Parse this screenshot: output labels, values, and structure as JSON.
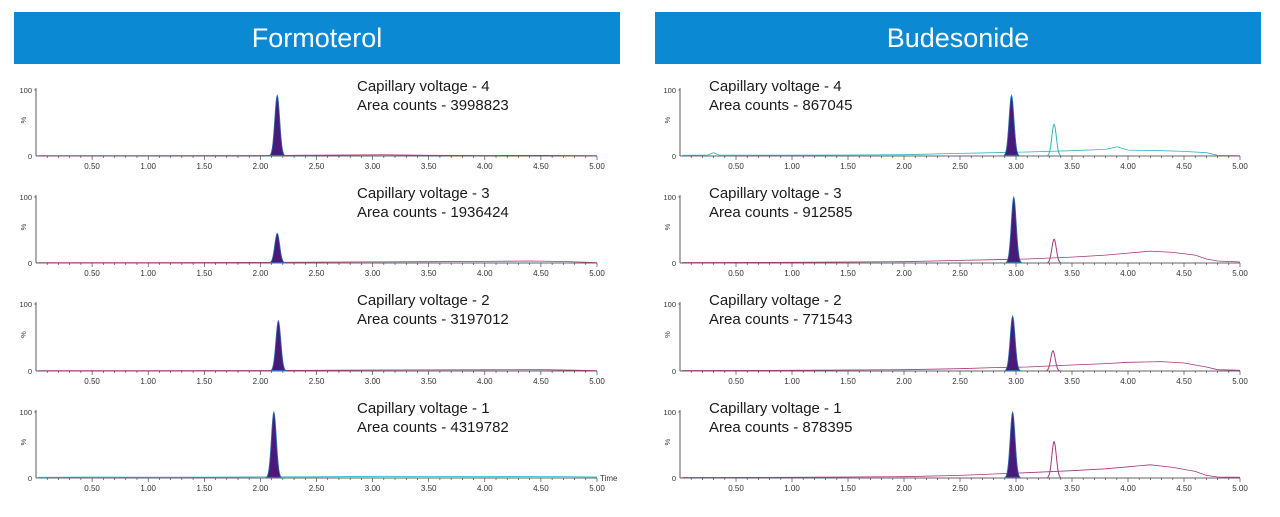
{
  "colors": {
    "header_bg": "#0b8ad3",
    "header_text": "#ffffff",
    "peak_fill": "#4a1a7a",
    "peak_edge": "#2a6fb0",
    "trace_cyan": "#2bb5c3",
    "trace_magenta": "#a8337f",
    "axis": "#333333"
  },
  "panels": [
    {
      "title": "Formoterol"
    },
    {
      "title": "Budesonide"
    }
  ],
  "chart_data": [
    {
      "type": "line",
      "compound": "Formoterol",
      "condition": "Capillary voltage - 4",
      "area": "Area counts - 3998823",
      "x_label": "",
      "xlim": [
        0,
        5.0
      ],
      "ylim": [
        0,
        100
      ],
      "y_ticks": [
        "100",
        "0"
      ],
      "y_unit": "%",
      "x_ticks": [
        "0.50",
        "1.00",
        "1.50",
        "2.00",
        "2.50",
        "3.00",
        "3.50",
        "4.00",
        "4.50",
        "5.00"
      ],
      "trace_color": "#a8337f",
      "peaks": [
        {
          "x": 2.15,
          "height": 92,
          "width": 0.022,
          "filled": true
        }
      ],
      "baseline": [
        [
          0.02,
          0.5
        ],
        [
          1.0,
          0.6
        ],
        [
          2.0,
          0.8
        ],
        [
          2.5,
          1.2
        ],
        [
          3.1,
          1.8
        ],
        [
          3.5,
          1.0
        ],
        [
          4.0,
          0.7
        ],
        [
          4.5,
          0.9
        ],
        [
          5.0,
          0.5
        ]
      ]
    },
    {
      "type": "line",
      "compound": "Formoterol",
      "condition": "Capillary voltage - 3",
      "area": "Area counts - 1936424",
      "x_label": "",
      "xlim": [
        0,
        5.0
      ],
      "ylim": [
        0,
        100
      ],
      "y_ticks": [
        "100",
        "0"
      ],
      "y_unit": "%",
      "x_ticks": [
        "0.50",
        "1.00",
        "1.50",
        "2.00",
        "2.50",
        "3.00",
        "3.50",
        "4.00",
        "4.50",
        "5.00"
      ],
      "trace_color": "#a8337f",
      "peaks": [
        {
          "x": 2.15,
          "height": 45,
          "width": 0.022,
          "filled": true
        }
      ],
      "baseline": [
        [
          0.02,
          0.6
        ],
        [
          1.0,
          0.6
        ],
        [
          2.0,
          0.9
        ],
        [
          2.5,
          1.3
        ],
        [
          3.0,
          1.6
        ],
        [
          3.5,
          2.0
        ],
        [
          4.0,
          2.4
        ],
        [
          4.4,
          3.0
        ],
        [
          4.7,
          2.2
        ],
        [
          5.0,
          0.6
        ]
      ]
    },
    {
      "type": "line",
      "compound": "Formoterol",
      "condition": "Capillary voltage - 2",
      "area": "Area counts - 3197012",
      "x_label": "",
      "xlim": [
        0,
        5.0
      ],
      "ylim": [
        0,
        100
      ],
      "y_ticks": [
        "100",
        "0"
      ],
      "y_unit": "%",
      "x_ticks": [
        "0.50",
        "1.00",
        "1.50",
        "2.00",
        "2.50",
        "3.00",
        "3.50",
        "4.00",
        "4.50",
        "5.00"
      ],
      "trace_color": "#a8337f",
      "peaks": [
        {
          "x": 2.16,
          "height": 75,
          "width": 0.022,
          "filled": true
        }
      ],
      "baseline": [
        [
          0.02,
          0.5
        ],
        [
          1.0,
          0.6
        ],
        [
          2.0,
          0.8
        ],
        [
          2.5,
          1.1
        ],
        [
          3.0,
          1.5
        ],
        [
          3.5,
          1.6
        ],
        [
          4.0,
          1.8
        ],
        [
          4.5,
          2.0
        ],
        [
          4.8,
          1.2
        ],
        [
          5.0,
          0.5
        ]
      ]
    },
    {
      "type": "line",
      "compound": "Formoterol",
      "condition": "Capillary voltage - 1",
      "area": "Area counts - 4319782",
      "x_label": "Time",
      "xlim": [
        0,
        5.0
      ],
      "ylim": [
        0,
        100
      ],
      "y_ticks": [
        "100",
        "0"
      ],
      "y_unit": "%",
      "x_ticks": [
        "0.50",
        "1.00",
        "1.50",
        "2.00",
        "2.50",
        "3.00",
        "3.50",
        "4.00",
        "4.50",
        "5.00"
      ],
      "trace_color": "#2bb5c3",
      "peaks": [
        {
          "x": 2.12,
          "height": 100,
          "width": 0.022,
          "filled": true
        }
      ],
      "baseline": [
        [
          0.02,
          1.0
        ],
        [
          0.5,
          1.5
        ],
        [
          1.0,
          1.2
        ],
        [
          1.5,
          1.4
        ],
        [
          2.0,
          1.6
        ],
        [
          2.5,
          1.8
        ],
        [
          3.1,
          2.6
        ],
        [
          3.5,
          2.2
        ],
        [
          4.0,
          2.0
        ],
        [
          4.5,
          2.4
        ],
        [
          5.0,
          1.5
        ]
      ]
    },
    {
      "type": "line",
      "compound": "Budesonide",
      "condition": "Capillary voltage - 4",
      "area": "Area counts - 867045",
      "x_label": "",
      "xlim": [
        0,
        5.0
      ],
      "ylim": [
        0,
        100
      ],
      "y_ticks": [
        "100",
        "0"
      ],
      "y_unit": "%",
      "x_ticks": [
        "0.50",
        "1.00",
        "1.50",
        "2.00",
        "2.50",
        "3.00",
        "3.50",
        "4.00",
        "4.50",
        "5.00"
      ],
      "trace_color": "#2bb5c3",
      "peaks": [
        {
          "x": 2.96,
          "height": 92,
          "width": 0.022,
          "filled": true
        },
        {
          "x": 3.34,
          "height": 48,
          "width": 0.02,
          "filled": false
        }
      ],
      "baseline": [
        [
          0.02,
          1.0
        ],
        [
          0.25,
          1.5
        ],
        [
          0.3,
          5.0
        ],
        [
          0.35,
          1.5
        ],
        [
          1.0,
          1.2
        ],
        [
          1.5,
          1.5
        ],
        [
          2.0,
          2.0
        ],
        [
          2.5,
          4.0
        ],
        [
          2.8,
          5.0
        ],
        [
          3.1,
          6.0
        ],
        [
          3.5,
          8.0
        ],
        [
          3.8,
          10.0
        ],
        [
          3.9,
          14.0
        ],
        [
          4.0,
          9.0
        ],
        [
          4.3,
          8.0
        ],
        [
          4.5,
          7.0
        ],
        [
          4.7,
          5.0
        ],
        [
          4.8,
          1.0
        ],
        [
          5.0,
          0.8
        ]
      ]
    },
    {
      "type": "line",
      "compound": "Budesonide",
      "condition": "Capillary voltage - 3",
      "area": "Area counts - 912585",
      "x_label": "",
      "xlim": [
        0,
        5.0
      ],
      "ylim": [
        0,
        100
      ],
      "y_ticks": [
        "100",
        "0"
      ],
      "y_unit": "%",
      "x_ticks": [
        "0.50",
        "1.00",
        "1.50",
        "2.00",
        "2.50",
        "3.00",
        "3.50",
        "4.00",
        "4.50",
        "5.00"
      ],
      "trace_color": "#a8337f",
      "peaks": [
        {
          "x": 2.98,
          "height": 100,
          "width": 0.022,
          "filled": true
        },
        {
          "x": 3.34,
          "height": 36,
          "width": 0.02,
          "filled": false
        }
      ],
      "baseline": [
        [
          0.02,
          0.8
        ],
        [
          1.0,
          1.0
        ],
        [
          2.0,
          2.0
        ],
        [
          2.5,
          4.0
        ],
        [
          2.8,
          5.0
        ],
        [
          3.1,
          6.0
        ],
        [
          3.5,
          9.0
        ],
        [
          3.8,
          12.0
        ],
        [
          4.0,
          15.0
        ],
        [
          4.2,
          18.0
        ],
        [
          4.4,
          16.0
        ],
        [
          4.6,
          12.0
        ],
        [
          4.7,
          6.0
        ],
        [
          4.8,
          3.0
        ],
        [
          5.0,
          1.5
        ]
      ]
    },
    {
      "type": "line",
      "compound": "Budesonide",
      "condition": "Capillary voltage - 2",
      "area": "Area counts - 771543",
      "x_label": "",
      "xlim": [
        0,
        5.0
      ],
      "ylim": [
        0,
        100
      ],
      "y_ticks": [
        "100",
        "0"
      ],
      "y_unit": "%",
      "x_ticks": [
        "0.50",
        "1.00",
        "1.50",
        "2.00",
        "2.50",
        "3.00",
        "3.50",
        "4.00",
        "4.50",
        "5.00"
      ],
      "trace_color": "#a8337f",
      "peaks": [
        {
          "x": 2.97,
          "height": 82,
          "width": 0.022,
          "filled": true
        },
        {
          "x": 3.33,
          "height": 30,
          "width": 0.02,
          "filled": false
        }
      ],
      "baseline": [
        [
          0.02,
          0.8
        ],
        [
          1.0,
          1.0
        ],
        [
          2.0,
          2.0
        ],
        [
          2.5,
          3.5
        ],
        [
          2.8,
          5.0
        ],
        [
          3.1,
          6.0
        ],
        [
          3.5,
          9.0
        ],
        [
          3.8,
          11.0
        ],
        [
          4.0,
          13.0
        ],
        [
          4.3,
          14.0
        ],
        [
          4.5,
          12.0
        ],
        [
          4.7,
          6.0
        ],
        [
          4.8,
          2.0
        ],
        [
          5.0,
          1.0
        ]
      ]
    },
    {
      "type": "line",
      "compound": "Budesonide",
      "condition": "Capillary voltage - 1",
      "area": "Area counts - 878395",
      "x_label": "",
      "xlim": [
        0,
        5.0
      ],
      "ylim": [
        0,
        100
      ],
      "y_ticks": [
        "100",
        "0"
      ],
      "y_unit": "%",
      "x_ticks": [
        "0.50",
        "1.00",
        "1.50",
        "2.00",
        "2.50",
        "3.00",
        "3.50",
        "4.00",
        "4.50",
        "5.00"
      ],
      "trace_color": "#a8337f",
      "peaks": [
        {
          "x": 2.97,
          "height": 100,
          "width": 0.022,
          "filled": true
        },
        {
          "x": 3.34,
          "height": 55,
          "width": 0.02,
          "filled": false
        }
      ],
      "baseline": [
        [
          0.02,
          0.8
        ],
        [
          1.0,
          1.0
        ],
        [
          2.0,
          2.0
        ],
        [
          2.5,
          4.0
        ],
        [
          2.8,
          6.0
        ],
        [
          3.1,
          8.0
        ],
        [
          3.5,
          11.0
        ],
        [
          3.8,
          14.0
        ],
        [
          4.0,
          17.0
        ],
        [
          4.2,
          20.0
        ],
        [
          4.4,
          16.0
        ],
        [
          4.6,
          10.0
        ],
        [
          4.7,
          4.0
        ],
        [
          4.8,
          1.5
        ],
        [
          5.0,
          1.0
        ]
      ]
    }
  ]
}
